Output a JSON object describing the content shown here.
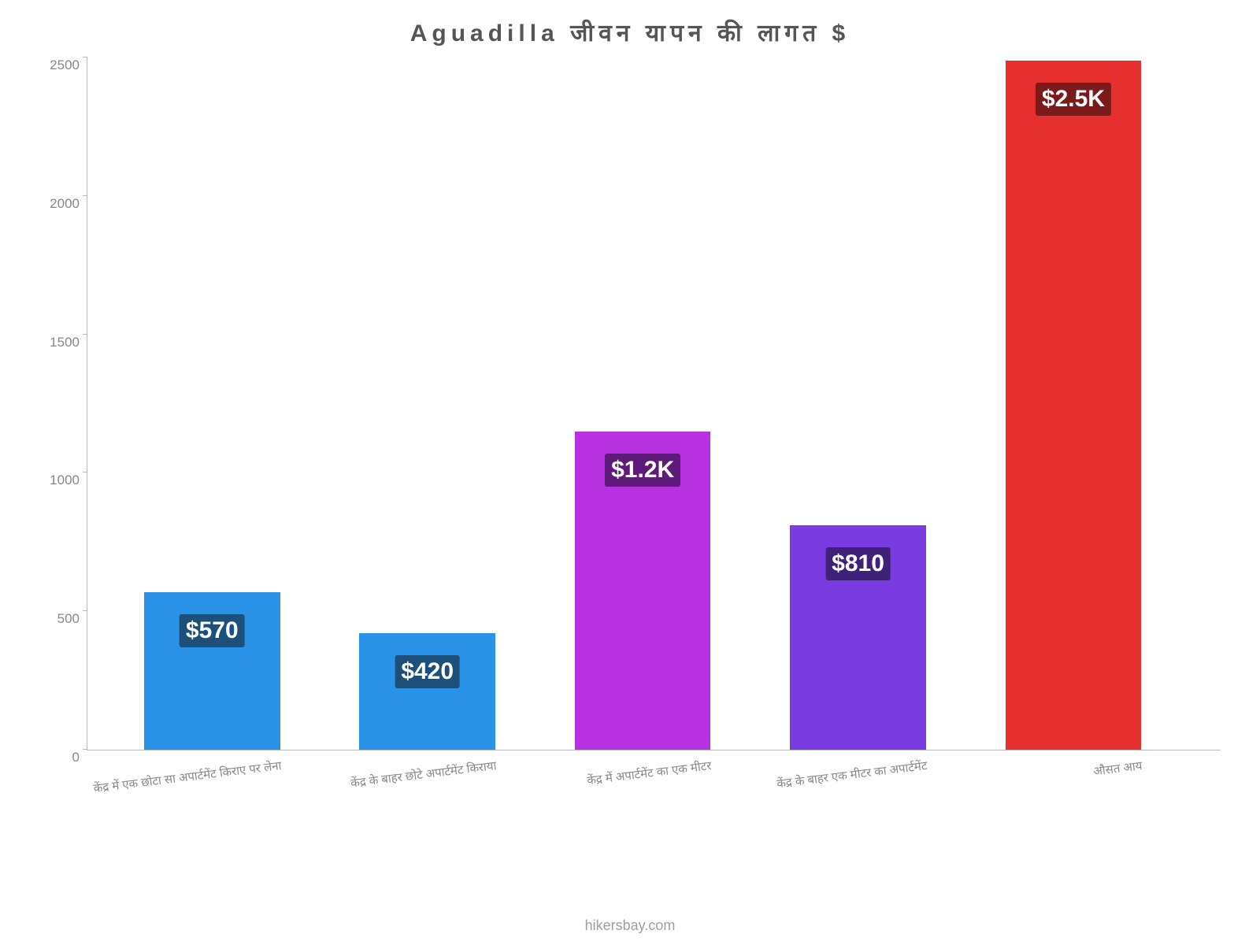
{
  "chart": {
    "type": "bar",
    "title": "Aguadilla जीवन    यापन    की    लागत    $",
    "title_fontsize": 30,
    "title_color": "#555555",
    "background_color": "#ffffff",
    "axis_color": "#bbbbbb",
    "ytick_color": "#888888",
    "ytick_fontsize": 17,
    "xlabel_color": "#888888",
    "xlabel_fontsize": 15,
    "xlabel_rotate_deg": -7,
    "ylim": [
      0,
      2500
    ],
    "ytick_step": 500,
    "yticks": [
      0,
      500,
      1000,
      1500,
      2000,
      2500
    ],
    "bar_width_pct": 12,
    "bar_gap_pct": 7,
    "left_offset_pct": 5,
    "value_label_fontsize": 30,
    "value_label_text_color": "#ffffff",
    "categories": [
      "केंद्र में एक छोटा सा अपार्टमेंट किराए पर लेना",
      "केंद्र के बाहर छोटे अपार्टमेंट किराया",
      "केंद्र में अपार्टमेंट का एक मीटर",
      "केंद्र के बाहर एक मीटर का अपार्टमेंट",
      "औसत आय"
    ],
    "values": [
      570,
      420,
      1150,
      810,
      2490
    ],
    "value_display": [
      "$570",
      "$420",
      "$1.2K",
      "$810",
      "$2.5K"
    ],
    "bar_colors": [
      "#2a93e8",
      "#2a93e8",
      "#b731e0",
      "#7a3be0",
      "#e63030"
    ],
    "label_bg_colors": [
      "#1c4f7a",
      "#1c4f7a",
      "#5e1a78",
      "#3f2178",
      "#7a1a1a"
    ]
  },
  "footer_text": "hikersbay.com",
  "footer_color": "#9e9e9e",
  "footer_fontsize": 18
}
